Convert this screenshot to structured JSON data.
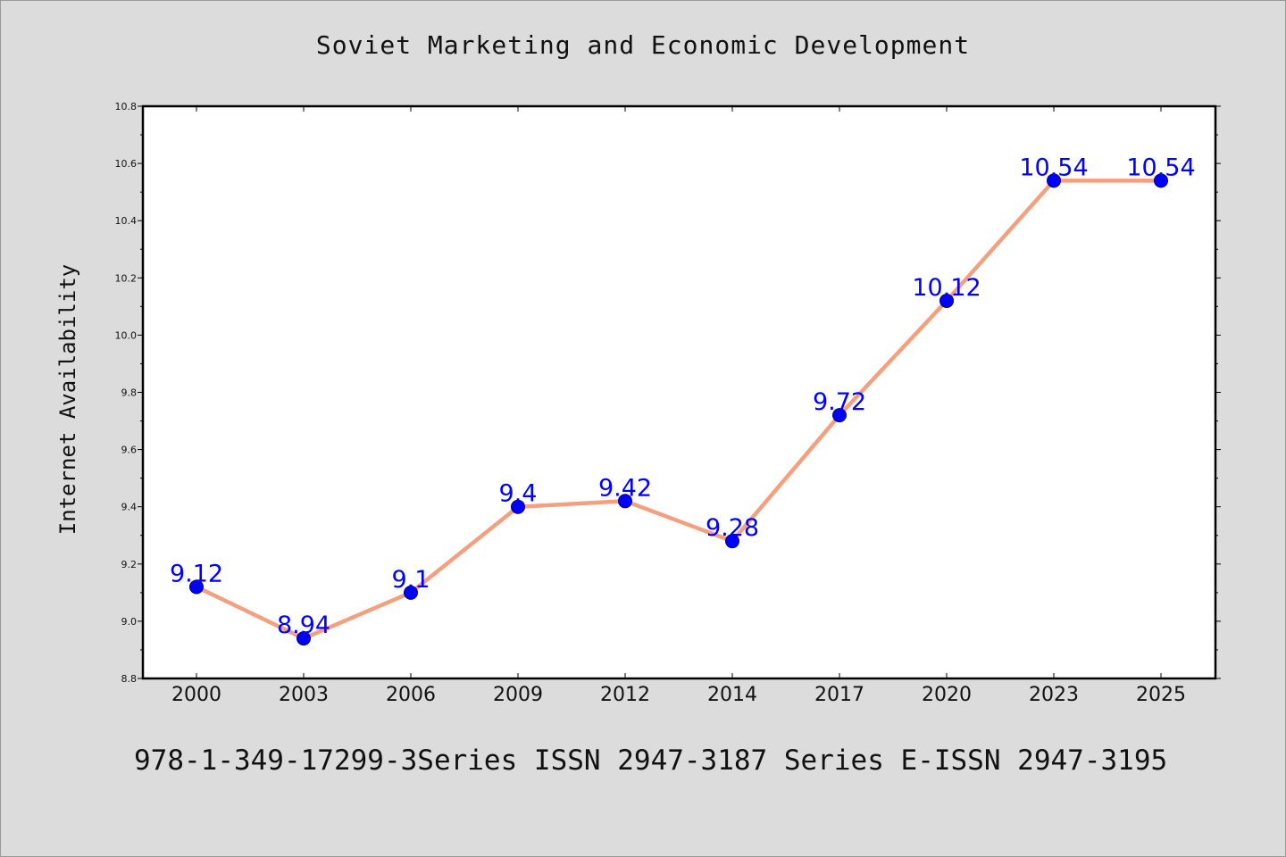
{
  "colors": {
    "background": "#dcdcdc",
    "plot_background": "#ffffff",
    "line": "#f4a07e",
    "marker": "#0000ff",
    "marker_edge": "#000080",
    "data_label": "#0000ff",
    "axis": "#000000"
  },
  "chart_data": {
    "type": "line",
    "title": "Soviet Marketing and Economic Development",
    "xlabel": "",
    "ylabel": "Internet Availability",
    "categories": [
      "2000",
      "2003",
      "2006",
      "2009",
      "2012",
      "2014",
      "2017",
      "2020",
      "2023",
      "2025"
    ],
    "series": [
      {
        "values": [
          9.12,
          8.94,
          9.1,
          9.4,
          9.42,
          9.28,
          9.72,
          10.12,
          10.54,
          10.54
        ],
        "data_labels": [
          "9.12",
          "8.94",
          "9.1",
          "9.4",
          "9.42",
          "9.28",
          "9.72",
          "10.12",
          "10.54",
          "10.54"
        ]
      }
    ],
    "ylim": [
      8.8,
      10.8
    ],
    "yticks": [
      "8.8",
      "9.0",
      "9.2",
      "9.4",
      "9.6",
      "9.8",
      "10.0",
      "10.2",
      "10.4",
      "10.6",
      "10.8"
    ],
    "grid": false,
    "legend": "none"
  },
  "footer": {
    "text": "978-1-349-17299-3Series ISSN 2947-3187 Series E-ISSN 2947-3195"
  }
}
